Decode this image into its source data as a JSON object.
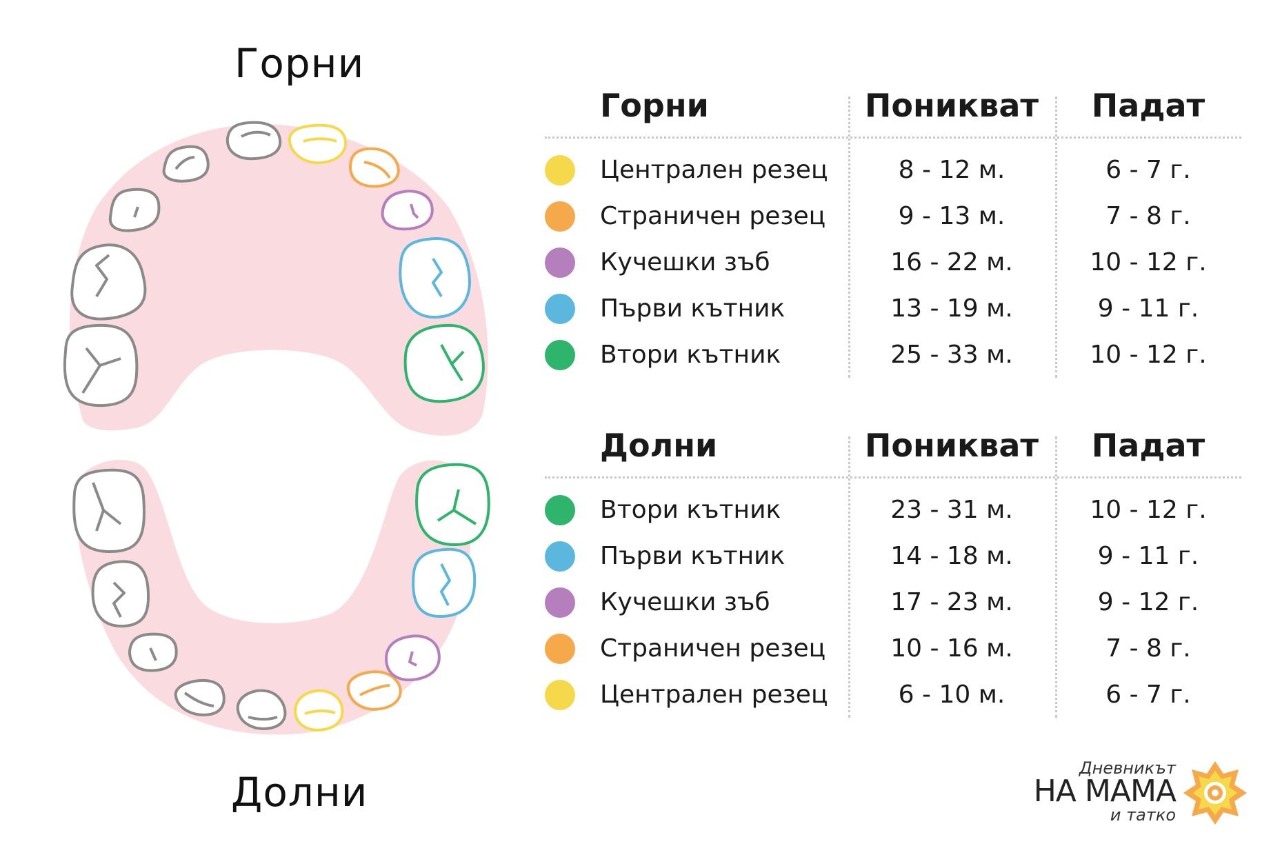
{
  "diagram": {
    "upper_title": "Горни",
    "lower_title": "Долни"
  },
  "colors": {
    "gum": "#f9dbe0",
    "central_incisor": "#f6d94a",
    "lateral_incisor": "#f5a94a",
    "canine": "#b57fbd",
    "first_molar": "#5bb7de",
    "second_molar": "#2fb46c",
    "outline_gray": "#8a8a8a"
  },
  "upper": {
    "headers": {
      "name": "Горни",
      "erupt": "Поникват",
      "fall": "Падат"
    },
    "rows": [
      {
        "tooth": "Централен резец",
        "erupt": "8 - 12 м.",
        "fall": "6 - 7 г.",
        "color": "#f6d94a"
      },
      {
        "tooth": "Страничен резец",
        "erupt": "9 - 13 м.",
        "fall": "7 - 8 г.",
        "color": "#f5a94a"
      },
      {
        "tooth": "Кучешки зъб",
        "erupt": "16 - 22 м.",
        "fall": "10 - 12 г.",
        "color": "#b57fbd"
      },
      {
        "tooth": "Първи кътник",
        "erupt": "13 - 19 м.",
        "fall": "9 - 11 г.",
        "color": "#5bb7de"
      },
      {
        "tooth": "Втори кътник",
        "erupt": "25 - 33 м.",
        "fall": "10 - 12 г.",
        "color": "#2fb46c"
      }
    ]
  },
  "lower": {
    "headers": {
      "name": "Долни",
      "erupt": "Поникват",
      "fall": "Падат"
    },
    "rows": [
      {
        "tooth": "Втори кътник",
        "erupt": "23 - 31 м.",
        "fall": "10 - 12 г.",
        "color": "#2fb46c"
      },
      {
        "tooth": "Първи кътник",
        "erupt": "14 - 18 м.",
        "fall": "9 - 11 г.",
        "color": "#5bb7de"
      },
      {
        "tooth": "Кучешки зъб",
        "erupt": "17 - 23 м.",
        "fall": "9 - 12 г.",
        "color": "#b57fbd"
      },
      {
        "tooth": "Страничен резец",
        "erupt": "10 - 16 м.",
        "fall": "7 - 8 г.",
        "color": "#f5a94a"
      },
      {
        "tooth": "Централен резец",
        "erupt": "6 - 10 м.",
        "fall": "6 - 7 г.",
        "color": "#f6d94a"
      }
    ]
  },
  "logo": {
    "line1": "Дневникът",
    "line2": "НА МАМА",
    "line3": "и татко",
    "icon": "sun-flower-icon"
  }
}
